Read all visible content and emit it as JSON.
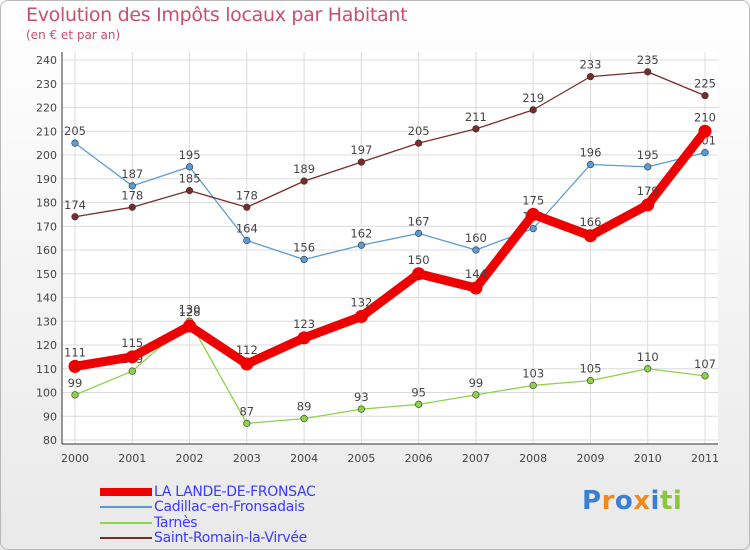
{
  "chart_data": {
    "type": "line",
    "title": "Evolution des Impôts locaux par Habitant",
    "subtitle": "(en € et par an)",
    "categories": [
      "2000",
      "2001",
      "2002",
      "2003",
      "2004",
      "2005",
      "2006",
      "2007",
      "2008",
      "2009",
      "2010",
      "2011"
    ],
    "ylim": [
      80,
      240
    ],
    "yticks": [
      80,
      90,
      100,
      110,
      120,
      130,
      140,
      150,
      160,
      170,
      180,
      190,
      200,
      210,
      220,
      230,
      240
    ],
    "grid": true,
    "legend_position": "bottom-left",
    "series": [
      {
        "name": "LA LANDE-DE-FRONSAC",
        "color": "#ee0000",
        "values": [
          111,
          115,
          128,
          112,
          123,
          132,
          150,
          144,
          175,
          166,
          179,
          210
        ]
      },
      {
        "name": "Cadillac-en-Fronsadais",
        "color": "#5b9bd5",
        "values": [
          205,
          187,
          195,
          164,
          156,
          162,
          167,
          160,
          169,
          196,
          195,
          201
        ]
      },
      {
        "name": "Tarnès",
        "color": "#8cd34a",
        "values": [
          99,
          109,
          130,
          87,
          89,
          93,
          95,
          99,
          103,
          105,
          110,
          107
        ]
      },
      {
        "name": "Saint-Romain-la-Virvée",
        "color": "#7a2b2b",
        "values": [
          174,
          178,
          185,
          178,
          189,
          197,
          205,
          211,
          219,
          233,
          235,
          225
        ]
      }
    ]
  },
  "logo": {
    "letters": [
      "P",
      "r",
      "o",
      "x",
      "i",
      "t",
      "i"
    ],
    "colors": [
      "#3a7fd5",
      "#f08a1c",
      "#3a7fd5",
      "#f08a1c",
      "#3a7fd5",
      "#8cc63f",
      "#8cc63f"
    ]
  }
}
